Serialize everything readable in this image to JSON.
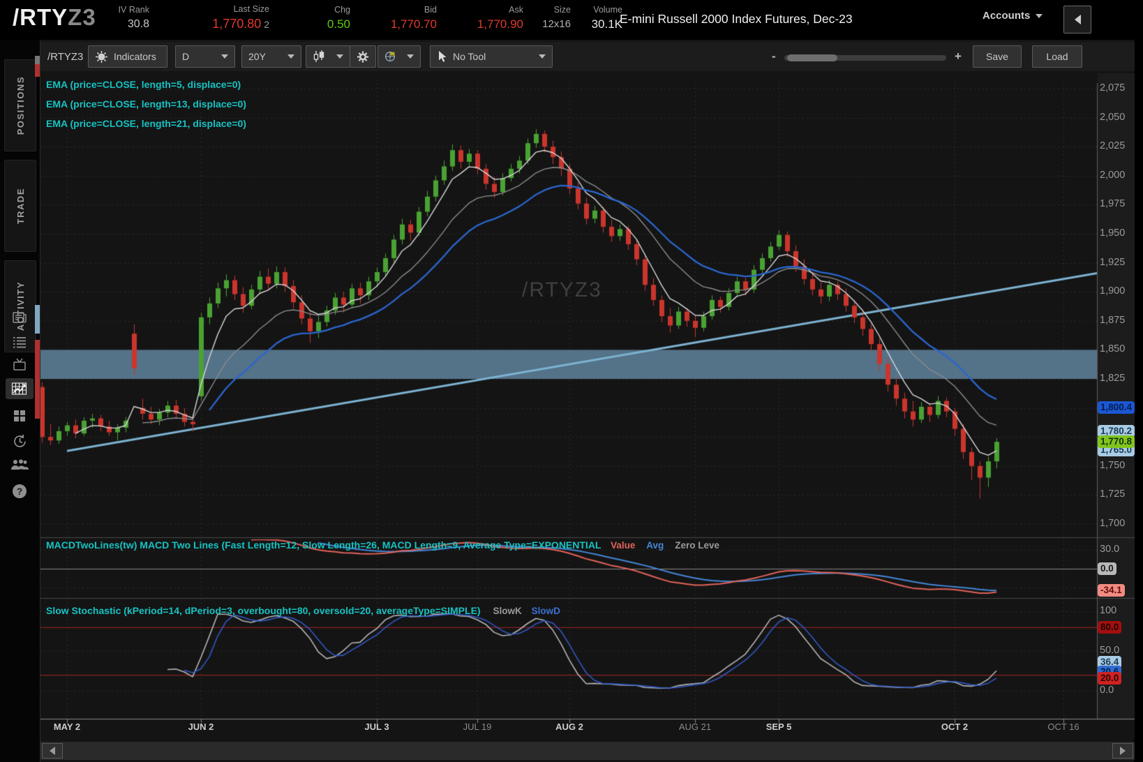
{
  "header": {
    "symbol": "/RTY",
    "symbol_suffix": "Z3",
    "fields": [
      {
        "label": "IV Rank",
        "value": "30.8",
        "color": "#c8c8c8",
        "size": 16
      },
      {
        "label": "Last Size",
        "value": "1,770.80",
        "extra": "2",
        "color": "#e03a2c",
        "size": 18
      },
      {
        "label": "Chg",
        "value": "0.50",
        "color": "#5ecb0c",
        "size": 17
      },
      {
        "label": "Bid",
        "value": "1,770.70",
        "color": "#e03a2c",
        "size": 17
      },
      {
        "label": "Ask",
        "value": "1,770.90",
        "color": "#e03a2c",
        "size": 17
      },
      {
        "label": "Size",
        "value": "12x16",
        "color": "#b0b0b0",
        "size": 15
      },
      {
        "label": "Volume",
        "value": "30.1K",
        "color": "#e8e8e8",
        "size": 17
      }
    ],
    "description": "E-mini Russell 2000 Index Futures, Dec-23",
    "accounts_label": "Accounts"
  },
  "sidebar": {
    "tabs": [
      {
        "label": "POSITIONS"
      },
      {
        "label": "TRADE"
      },
      {
        "label": "ACTIVITY"
      }
    ],
    "icons": [
      "news-icon",
      "list-icon",
      "tv-icon",
      "chart-icon",
      "grid-icon",
      "history-icon",
      "people-icon",
      "help-icon"
    ],
    "active_icon": "chart-icon",
    "help_glyph": "?"
  },
  "toolbar": {
    "symbol_label": "/RTYZ3",
    "indicators_label": "Indicators",
    "interval_value": "D",
    "range_value": "20Y",
    "tool_label": "No Tool",
    "zoom_minus": "-",
    "zoom_plus": "+",
    "save_label": "Save",
    "load_label": "Load"
  },
  "chart": {
    "watermark": "/RTYZ3",
    "ema_labels": [
      "EMA (price=CLOSE, length=5, displace=0)",
      "EMA (price=CLOSE, length=13, displace=0)",
      "EMA (price=CLOSE, length=21, displace=0)"
    ],
    "macd_label": "MACDTwoLines(tw) MACD Two Lines (Fast Length=12, Slow Length=26, MACD Length=9, Average Type=EXPONENTIAL",
    "macd_value_label": "Value",
    "macd_avg_label": "Avg",
    "macd_zero_label": "Zero Leve",
    "stoch_label": "Slow Stochastic (kPeriod=14, dPeriod=3, overbought=80, oversold=20, averageType=SIMPLE)",
    "stoch_k_label": "SlowK",
    "stoch_d_label": "SlowD",
    "price_axis_labels": [
      {
        "text": "2,075",
        "p": 2075
      },
      {
        "text": "2,050",
        "p": 2050
      },
      {
        "text": "2,025",
        "p": 2025
      },
      {
        "text": "2,000",
        "p": 2000
      },
      {
        "text": "1,975",
        "p": 1975
      },
      {
        "text": "1,950",
        "p": 1950
      },
      {
        "text": "1,925",
        "p": 1925
      },
      {
        "text": "1,900",
        "p": 1900
      },
      {
        "text": "1,875",
        "p": 1875
      },
      {
        "text": "1,850",
        "p": 1850
      },
      {
        "text": "1,825",
        "p": 1825
      },
      {
        "text": "1,750",
        "p": 1750
      },
      {
        "text": "1,725",
        "p": 1725
      },
      {
        "text": "1,700",
        "p": 1700
      }
    ],
    "price_bubbles": [
      {
        "text": "1,800.4",
        "p": 1800.4,
        "bg": "#1c57d4",
        "fg": "#051d4d",
        "z": 2
      },
      {
        "text": "1,780.2",
        "p": 1780.2,
        "bg": "#a9cbe4",
        "fg": "#1a3a55",
        "z": 2
      },
      {
        "text": "1,765.0",
        "p": 1763.5,
        "bg": "#a9cbe4",
        "fg": "#1a3a55",
        "z": 1
      },
      {
        "text": "1,770.8",
        "p": 1770.8,
        "bg": "#80c51f",
        "fg": "#15300a",
        "z": 3
      }
    ],
    "macd_axis": [
      {
        "text": "30.0",
        "v": 30,
        "type": "plain"
      },
      {
        "text": "0.0",
        "v": 0,
        "type": "bubble",
        "bg": "#b9b9b9",
        "fg": "#161616"
      },
      {
        "text": "-34.1",
        "v": -34.1,
        "type": "bubble",
        "bg": "#f28b82",
        "fg": "#5e120c"
      }
    ],
    "stoch_axis": [
      {
        "text": "100",
        "v": 100,
        "type": "plain"
      },
      {
        "text": "80.0",
        "v": 80,
        "type": "bubble",
        "bg": "#a30f0f",
        "fg": "#1e0202"
      },
      {
        "text": "50.0",
        "v": 50,
        "type": "plain"
      },
      {
        "text": "36.4",
        "v": 36.4,
        "type": "bubble",
        "bg": "#a9cbe4",
        "fg": "#1a3a55"
      },
      {
        "text": "20.6",
        "v": 24.0,
        "type": "bubble",
        "bg": "#2f6bd0",
        "fg": "#051d4d"
      },
      {
        "text": "20.0",
        "v": 16.0,
        "type": "bubble",
        "bg": "#cf2222",
        "fg": "#2a0404"
      },
      {
        "text": "0.0",
        "v": 0,
        "type": "plain"
      }
    ],
    "date_ticks": [
      {
        "label": "MAY 2",
        "i": 3,
        "bright": true
      },
      {
        "label": "JUN 2",
        "i": 19,
        "bright": true
      },
      {
        "label": "JUL 3",
        "i": 40,
        "bright": true
      },
      {
        "label": "JUL 19",
        "i": 52,
        "bright": false
      },
      {
        "label": "AUG 2",
        "i": 63,
        "bright": true
      },
      {
        "label": "AUG 21",
        "i": 78,
        "bright": false
      },
      {
        "label": "SEP 5",
        "i": 88,
        "bright": true
      },
      {
        "label": "OCT 2",
        "i": 109,
        "bright": true
      },
      {
        "label": "OCT 16",
        "i": 122,
        "bright": false
      }
    ]
  },
  "chart_data": {
    "type": "candlestick",
    "symbol": "/RTYZ3",
    "timeframe": "D",
    "price_range": {
      "min": 1700,
      "max": 2075,
      "step": 25
    },
    "band": {
      "from": 1825,
      "to": 1850
    },
    "trendline": {
      "from_bar": 3,
      "from_price": 1763,
      "to_price": 1916
    },
    "studies": {
      "ema_periods": [
        5,
        13,
        21
      ],
      "macd": {
        "fast": 12,
        "slow": 26,
        "length": 9
      },
      "stoch": {
        "k": 14,
        "d": 3,
        "overbought": 80,
        "oversold": 20
      }
    },
    "macd_range": {
      "min": -45,
      "max": 47
    },
    "stoch_range": {
      "min": 0,
      "max": 100
    },
    "candles_ohlc": [
      [
        1818,
        1822,
        1770,
        1775
      ],
      [
        1775,
        1786,
        1768,
        1772
      ],
      [
        1772,
        1784,
        1769,
        1780
      ],
      [
        1780,
        1788,
        1776,
        1785
      ],
      [
        1785,
        1790,
        1774,
        1778
      ],
      [
        1778,
        1792,
        1776,
        1789
      ],
      [
        1789,
        1795,
        1783,
        1791
      ],
      [
        1791,
        1794,
        1780,
        1784
      ],
      [
        1784,
        1789,
        1776,
        1779
      ],
      [
        1779,
        1786,
        1772,
        1783
      ],
      [
        1783,
        1792,
        1779,
        1789
      ],
      [
        1864,
        1872,
        1828,
        1834
      ],
      [
        1800,
        1808,
        1790,
        1795
      ],
      [
        1795,
        1801,
        1786,
        1790
      ],
      [
        1790,
        1799,
        1785,
        1796
      ],
      [
        1796,
        1806,
        1792,
        1802
      ],
      [
        1802,
        1807,
        1791,
        1795
      ],
      [
        1795,
        1800,
        1784,
        1788
      ],
      [
        1788,
        1794,
        1780,
        1786
      ],
      [
        1810,
        1882,
        1806,
        1878
      ],
      [
        1878,
        1895,
        1872,
        1890
      ],
      [
        1890,
        1908,
        1886,
        1903
      ],
      [
        1903,
        1915,
        1896,
        1910
      ],
      [
        1910,
        1914,
        1893,
        1898
      ],
      [
        1898,
        1904,
        1882,
        1888
      ],
      [
        1888,
        1906,
        1885,
        1902
      ],
      [
        1902,
        1918,
        1898,
        1913
      ],
      [
        1913,
        1920,
        1902,
        1907
      ],
      [
        1907,
        1922,
        1903,
        1917
      ],
      [
        1917,
        1921,
        1900,
        1905
      ],
      [
        1905,
        1910,
        1886,
        1891
      ],
      [
        1891,
        1897,
        1872,
        1877
      ],
      [
        1877,
        1884,
        1856,
        1866
      ],
      [
        1866,
        1879,
        1860,
        1874
      ],
      [
        1874,
        1888,
        1870,
        1884
      ],
      [
        1884,
        1899,
        1880,
        1895
      ],
      [
        1895,
        1900,
        1882,
        1889
      ],
      [
        1889,
        1907,
        1886,
        1903
      ],
      [
        1903,
        1908,
        1890,
        1897
      ],
      [
        1897,
        1913,
        1893,
        1909
      ],
      [
        1909,
        1921,
        1904,
        1917
      ],
      [
        1917,
        1933,
        1913,
        1929
      ],
      [
        1929,
        1949,
        1925,
        1945
      ],
      [
        1945,
        1963,
        1941,
        1958
      ],
      [
        1958,
        1962,
        1944,
        1951
      ],
      [
        1951,
        1973,
        1948,
        1969
      ],
      [
        1969,
        1987,
        1965,
        1982
      ],
      [
        1982,
        2000,
        1978,
        1996
      ],
      [
        1996,
        2013,
        1992,
        2008
      ],
      [
        2008,
        2027,
        2004,
        2022
      ],
      [
        2022,
        2026,
        2006,
        2012
      ],
      [
        2012,
        2023,
        2008,
        2019
      ],
      [
        2019,
        2022,
        2001,
        2006
      ],
      [
        2006,
        2010,
        1988,
        1993
      ],
      [
        1993,
        1999,
        1981,
        1986
      ],
      [
        1986,
        2002,
        1983,
        1998
      ],
      [
        1998,
        2010,
        1995,
        2006
      ],
      [
        2006,
        2017,
        2002,
        2013
      ],
      [
        2013,
        2032,
        2010,
        2028
      ],
      [
        2028,
        2040,
        2024,
        2036
      ],
      [
        2036,
        2039,
        2020,
        2025
      ],
      [
        2025,
        2030,
        2010,
        2016
      ],
      [
        2016,
        2021,
        2000,
        2006
      ],
      [
        2006,
        2010,
        1984,
        1989
      ],
      [
        1989,
        1994,
        1971,
        1976
      ],
      [
        1976,
        1981,
        1958,
        1963
      ],
      [
        1963,
        1974,
        1959,
        1970
      ],
      [
        1970,
        1973,
        1951,
        1956
      ],
      [
        1956,
        1962,
        1943,
        1948
      ],
      [
        1948,
        1958,
        1944,
        1954
      ],
      [
        1954,
        1957,
        1936,
        1941
      ],
      [
        1941,
        1945,
        1923,
        1928
      ],
      [
        1928,
        1933,
        1901,
        1906
      ],
      [
        1906,
        1912,
        1888,
        1893
      ],
      [
        1893,
        1897,
        1874,
        1879
      ],
      [
        1879,
        1886,
        1865,
        1871
      ],
      [
        1871,
        1887,
        1868,
        1883
      ],
      [
        1883,
        1886,
        1870,
        1875
      ],
      [
        1875,
        1880,
        1861,
        1869
      ],
      [
        1869,
        1883,
        1866,
        1879
      ],
      [
        1879,
        1897,
        1876,
        1893
      ],
      [
        1893,
        1896,
        1882,
        1887
      ],
      [
        1887,
        1903,
        1884,
        1899
      ],
      [
        1899,
        1913,
        1896,
        1909
      ],
      [
        1909,
        1912,
        1897,
        1902
      ],
      [
        1902,
        1923,
        1899,
        1919
      ],
      [
        1919,
        1933,
        1916,
        1929
      ],
      [
        1929,
        1943,
        1926,
        1939
      ],
      [
        1939,
        1953,
        1936,
        1949
      ],
      [
        1949,
        1952,
        1930,
        1935
      ],
      [
        1935,
        1940,
        1917,
        1922
      ],
      [
        1922,
        1928,
        1906,
        1911
      ],
      [
        1911,
        1917,
        1897,
        1902
      ],
      [
        1902,
        1908,
        1890,
        1896
      ],
      [
        1896,
        1910,
        1892,
        1906
      ],
      [
        1906,
        1909,
        1893,
        1898
      ],
      [
        1898,
        1903,
        1883,
        1888
      ],
      [
        1888,
        1893,
        1873,
        1878
      ],
      [
        1878,
        1884,
        1862,
        1868
      ],
      [
        1868,
        1872,
        1849,
        1855
      ],
      [
        1855,
        1860,
        1832,
        1838
      ],
      [
        1838,
        1843,
        1814,
        1820
      ],
      [
        1820,
        1826,
        1802,
        1808
      ],
      [
        1808,
        1813,
        1791,
        1797
      ],
      [
        1797,
        1806,
        1784,
        1790
      ],
      [
        1790,
        1805,
        1787,
        1801
      ],
      [
        1801,
        1804,
        1788,
        1794
      ],
      [
        1794,
        1810,
        1791,
        1806
      ],
      [
        1806,
        1809,
        1792,
        1797
      ],
      [
        1797,
        1800,
        1776,
        1782
      ],
      [
        1782,
        1786,
        1756,
        1762
      ],
      [
        1762,
        1766,
        1738,
        1750
      ],
      [
        1750,
        1754,
        1722,
        1740
      ],
      [
        1740,
        1758,
        1732,
        1754
      ],
      [
        1754,
        1774,
        1748,
        1770.8
      ]
    ]
  },
  "colors": {
    "up": "#4aa233",
    "down": "#cb352c",
    "ema5": "#d9d9d9",
    "ema13": "#8c8c8c",
    "ema21": "#2b66cf",
    "macd_value": "#e2635a",
    "macd_avg": "#4486d8",
    "stoch_k": "#b5b5b5",
    "stoch_d": "#3158c4",
    "band": "rgba(93,128,153,0.88)",
    "trendline": "#7db3d2",
    "grid": "#2d2d2d",
    "axis_line": "#5e5e5e",
    "separator": "#4a4a4a",
    "timeline": "#8a8a8a",
    "ob_os": "#a82626",
    "zero_line": "#8a8a8a",
    "chart_bg": "#141414",
    "gutter_bg": "#1c1c1c"
  }
}
